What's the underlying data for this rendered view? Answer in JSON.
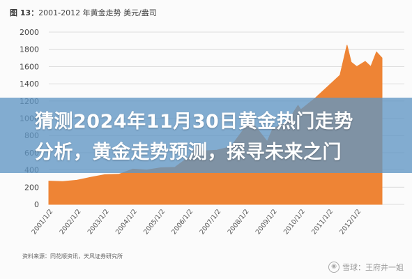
{
  "chart_title": {
    "prefix": "图 13：",
    "text": "2001-2012 年黄金走势 美元/盎司"
  },
  "headline": {
    "line1": "猜测2024年11月30日黄金热门走势",
    "line2": "分析，黄金走势预测，探寻未来之门"
  },
  "source": "资料来源：同花顺资讯，天风证券研究所",
  "watermark": {
    "icon": "camera-icon",
    "text": "雪球：王府井一姐"
  },
  "colors": {
    "area_fill": "#ee8435",
    "grid": "#d4d4d4",
    "overlay": "#6096c4",
    "headline": "#ffffff"
  },
  "chart_data": {
    "type": "area",
    "title": "2001-2012 年黄金走势 美元/盎司",
    "ylim": [
      0,
      2000
    ],
    "yticks": [
      0,
      200,
      400,
      600,
      800,
      1000,
      1200,
      1400,
      1600,
      1800,
      2000
    ],
    "ytick_labels": [
      "0",
      "200",
      "400",
      "600",
      "800",
      "1000",
      "1200",
      "1400",
      "1600",
      "1800",
      "2000"
    ],
    "xtick_labels": [
      "2001/1/2",
      "2002/1/2",
      "2003/1/2",
      "2004/1/2",
      "2005/1/2",
      "2006/1/2",
      "2007/1/2",
      "2008/1/2",
      "2009/1/2",
      "2010/1/2",
      "2011/1/2",
      "2012/1/2"
    ],
    "grid": true,
    "x": [
      2001.0,
      2001.5,
      2002.0,
      2002.5,
      2003.0,
      2003.5,
      2004.0,
      2004.5,
      2005.0,
      2005.5,
      2006.0,
      2006.35,
      2006.5,
      2007.0,
      2007.5,
      2008.0,
      2008.2,
      2008.8,
      2009.0,
      2009.5,
      2009.9,
      2010.0,
      2010.5,
      2011.0,
      2011.4,
      2011.65,
      2011.8,
      2012.0,
      2012.3,
      2012.5,
      2012.7,
      2012.9
    ],
    "y": [
      270,
      265,
      280,
      315,
      345,
      350,
      410,
      400,
      425,
      430,
      550,
      700,
      620,
      630,
      670,
      890,
      980,
      730,
      880,
      950,
      1150,
      1100,
      1230,
      1380,
      1500,
      1850,
      1650,
      1600,
      1660,
      1600,
      1770,
      1700
    ]
  }
}
